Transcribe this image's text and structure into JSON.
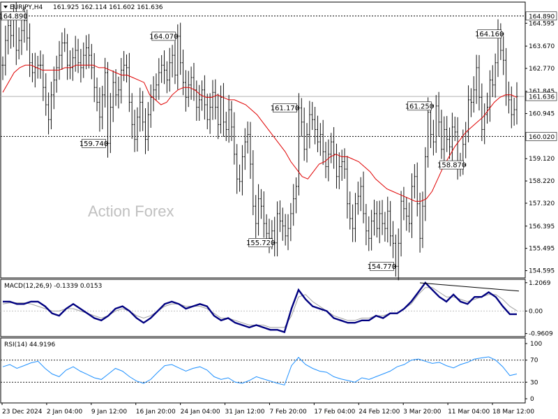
{
  "chart_data": {
    "type": "line",
    "symbol": "EURJPY,H4",
    "ohlc_header": "161.925 162.114 161.602 161.636",
    "watermark": "Action Forex",
    "x_tick_labels": [
      "23 Dec 2024",
      "2 Jan 04:00",
      "9 Jan 12:00",
      "16 Jan 20:00",
      "24 Jan 04:00",
      "31 Jan 12:00",
      "7 Feb 20:00",
      "17 Feb 04:00",
      "24 Feb 12:00",
      "3 Mar 20:00",
      "11 Mar 04:00",
      "18 Mar 12:00"
    ],
    "price_panel": {
      "ylim": [
        154.3,
        165.45
      ],
      "y_ticks": [
        "164.595",
        "163.670",
        "162.770",
        "161.845",
        "160.945",
        "160.020",
        "159.120",
        "158.220",
        "157.320",
        "156.395",
        "155.495",
        "154.595"
      ],
      "current_price_label": "161.636",
      "current_price": 161.636,
      "hlines": [
        {
          "value": 164.89,
          "label": "164.890",
          "style": "dashed"
        },
        {
          "value": 160.02,
          "label": "160.020",
          "style": "dashed"
        },
        {
          "value": 161.636,
          "label": "161.636",
          "style": "solid"
        }
      ],
      "callouts": [
        {
          "label": "164.890",
          "value": 164.89,
          "bar": 4
        },
        {
          "label": "164.070",
          "value": 164.07,
          "bar": 65
        },
        {
          "label": "159.740",
          "value": 159.74,
          "bar": 39
        },
        {
          "label": "161.170",
          "value": 161.17,
          "bar": 110
        },
        {
          "label": "155.720",
          "value": 155.72,
          "bar": 101
        },
        {
          "label": "154.770",
          "value": 154.77,
          "bar": 146
        },
        {
          "label": "161.250",
          "value": 161.25,
          "bar": 160
        },
        {
          "label": "158.870",
          "value": 158.87,
          "bar": 172
        },
        {
          "label": "164.160",
          "value": 164.16,
          "bar": 186
        }
      ],
      "closes": [
        162.9,
        163.9,
        164.5,
        164.1,
        164.89,
        163.5,
        163.9,
        164.3,
        164.7,
        164.0,
        163.0,
        162.6,
        162.8,
        162.9,
        162.9,
        162.0,
        161.3,
        160.7,
        161.7,
        162.3,
        162.8,
        163.3,
        163.8,
        163.8,
        162.9,
        162.8,
        163.2,
        163.5,
        163.0,
        162.8,
        163.3,
        163.6,
        163.3,
        162.8,
        162.0,
        161.4,
        160.8,
        161.7,
        162.6,
        159.74,
        161.2,
        162.2,
        161.7,
        161.9,
        162.7,
        162.9,
        162.8,
        161.4,
        160.5,
        159.9,
        160.8,
        161.4,
        160.6,
        159.9,
        160.9,
        161.6,
        161.9,
        162.1,
        162.6,
        162.9,
        162.7,
        162.3,
        163.0,
        163.3,
        162.5,
        164.07,
        163.0,
        162.2,
        161.6,
        162.1,
        162.4,
        161.9,
        161.2,
        161.5,
        161.9,
        161.3,
        160.7,
        161.2,
        161.8,
        161.2,
        160.5,
        161.6,
        160.6,
        160.3,
        161.1,
        160.4,
        159.3,
        158.3,
        158.2,
        159.2,
        159.8,
        160.1,
        158.9,
        157.2,
        156.5,
        157.5,
        157.2,
        156.5,
        156.1,
        155.9,
        156.2,
        155.72,
        156.9,
        156.6,
        156.4,
        156.0,
        156.3,
        156.9,
        157.5,
        158.0,
        161.17,
        160.6,
        159.5,
        160.1,
        160.9,
        160.7,
        160.3,
        159.8,
        160.1,
        159.4,
        158.8,
        159.3,
        159.8,
        159.3,
        158.4,
        158.8,
        159.0,
        158.7,
        157.3,
        156.7,
        156.3,
        157.3,
        157.6,
        158.0,
        156.9,
        156.2,
        155.9,
        156.6,
        156.9,
        156.3,
        156.9,
        156.5,
        156.3,
        157.0,
        156.0,
        155.7,
        154.77,
        155.7,
        157.4,
        157.1,
        156.8,
        156.5,
        158.0,
        158.4,
        157.3,
        155.9,
        157.2,
        159.2,
        161.0,
        160.1,
        159.8,
        161.25,
        160.6,
        159.5,
        160.3,
        159.9,
        159.6,
        160.4,
        160.2,
        158.87,
        159.0,
        159.7,
        160.2,
        161.5,
        161.4,
        161.9,
        162.8,
        161.6,
        160.3,
        160.9,
        161.2,
        162.3,
        162.1,
        163.0,
        164.16,
        163.5,
        163.1,
        161.7,
        161.5,
        160.9,
        161.1,
        161.636
      ],
      "ma": [
        161.8,
        162.2,
        162.6,
        162.8,
        162.9,
        162.9,
        162.8,
        162.7,
        162.7,
        162.7,
        162.7,
        162.8,
        162.8,
        162.9,
        162.9,
        162.9,
        162.9,
        162.8,
        162.8,
        162.7,
        162.6,
        162.5,
        162.5,
        162.4,
        162.3,
        162.2,
        161.7,
        161.5,
        161.3,
        161.4,
        161.7,
        161.9,
        162.0,
        162.0,
        161.9,
        161.7,
        161.6,
        161.6,
        161.7,
        161.6,
        161.5,
        161.5,
        161.4,
        161.3,
        161.1,
        160.9,
        160.6,
        160.3,
        160.0,
        159.7,
        159.4,
        159.0,
        158.7,
        158.4,
        158.3,
        158.6,
        158.9,
        159.0,
        159.2,
        159.3,
        159.2,
        159.2,
        159.1,
        159.0,
        158.8,
        158.6,
        158.3,
        158.1,
        157.9,
        157.8,
        157.7,
        157.6,
        157.5,
        157.4,
        157.4,
        157.5,
        157.8,
        158.3,
        158.8,
        159.2,
        159.6,
        159.9,
        160.2,
        160.4,
        160.6,
        160.8,
        161.1,
        161.4,
        161.6,
        161.7,
        161.7,
        161.6
      ]
    },
    "macd_panel": {
      "label": "MACD(12,26,9) -0.1339 0.0153",
      "ylim": [
        -1.09,
        1.35
      ],
      "y_ticks": [
        "1.2069",
        "0.00",
        "-0.9609"
      ],
      "macd": [
        0.4,
        0.4,
        0.3,
        0.3,
        0.4,
        0.4,
        0.2,
        -0.1,
        -0.2,
        0.1,
        0.3,
        0.1,
        -0.1,
        -0.3,
        -0.4,
        -0.2,
        0.1,
        0.2,
        0.0,
        -0.3,
        -0.5,
        -0.3,
        0.0,
        0.3,
        0.4,
        0.3,
        0.1,
        0.2,
        0.3,
        0.2,
        -0.2,
        -0.4,
        -0.3,
        -0.5,
        -0.6,
        -0.7,
        -0.6,
        -0.7,
        -0.8,
        -0.8,
        -0.9,
        0.1,
        0.9,
        0.5,
        0.2,
        0.1,
        0.0,
        -0.3,
        -0.4,
        -0.5,
        -0.5,
        -0.4,
        -0.4,
        -0.2,
        -0.3,
        -0.1,
        -0.1,
        0.1,
        0.4,
        0.8,
        1.2069,
        0.9,
        0.6,
        0.4,
        0.7,
        0.4,
        0.3,
        0.6,
        0.6,
        0.8,
        0.6,
        0.2,
        -0.1335,
        -0.1339
      ],
      "signal": [
        0.3,
        0.35,
        0.35,
        0.35,
        0.3,
        0.2,
        0.1,
        0.0,
        0.0,
        0.1,
        0.1,
        0.0,
        -0.1,
        -0.2,
        -0.3,
        -0.2,
        0.0,
        0.1,
        0.0,
        -0.2,
        -0.3,
        -0.2,
        0.0,
        0.2,
        0.3,
        0.3,
        0.2,
        0.2,
        0.2,
        0.1,
        -0.1,
        -0.3,
        -0.3,
        -0.4,
        -0.5,
        -0.6,
        -0.6,
        -0.6,
        -0.7,
        -0.7,
        -0.7,
        -0.2,
        0.6,
        0.7,
        0.4,
        0.2,
        0.0,
        -0.2,
        -0.3,
        -0.4,
        -0.4,
        -0.3,
        -0.3,
        -0.2,
        -0.2,
        -0.1,
        -0.1,
        0.1,
        0.3,
        0.7,
        1.0,
        1.0,
        0.8,
        0.6,
        0.6,
        0.5,
        0.4,
        0.5,
        0.6,
        0.7,
        0.7,
        0.5,
        0.2,
        0.0153
      ],
      "divergence_line": {
        "from": [
          602,
          1.2
        ],
        "to": [
          744,
          0.85
        ]
      }
    },
    "rsi_panel": {
      "label": "RSI(14) 44.9196",
      "ylim": [
        0,
        100
      ],
      "y_ticks": [
        "100",
        "70",
        "30",
        "0"
      ],
      "levels": [
        70,
        30
      ],
      "values": [
        58,
        62,
        55,
        60,
        65,
        68,
        55,
        45,
        40,
        52,
        58,
        50,
        44,
        38,
        35,
        45,
        55,
        50,
        40,
        32,
        28,
        35,
        48,
        60,
        62,
        56,
        50,
        55,
        58,
        52,
        40,
        35,
        38,
        30,
        28,
        33,
        40,
        36,
        32,
        28,
        25,
        60,
        75,
        62,
        55,
        50,
        48,
        40,
        36,
        33,
        30,
        38,
        35,
        40,
        45,
        50,
        58,
        62,
        70,
        72,
        68,
        64,
        66,
        60,
        56,
        62,
        66,
        72,
        74,
        76,
        70,
        58,
        42,
        44.9196
      ]
    }
  }
}
